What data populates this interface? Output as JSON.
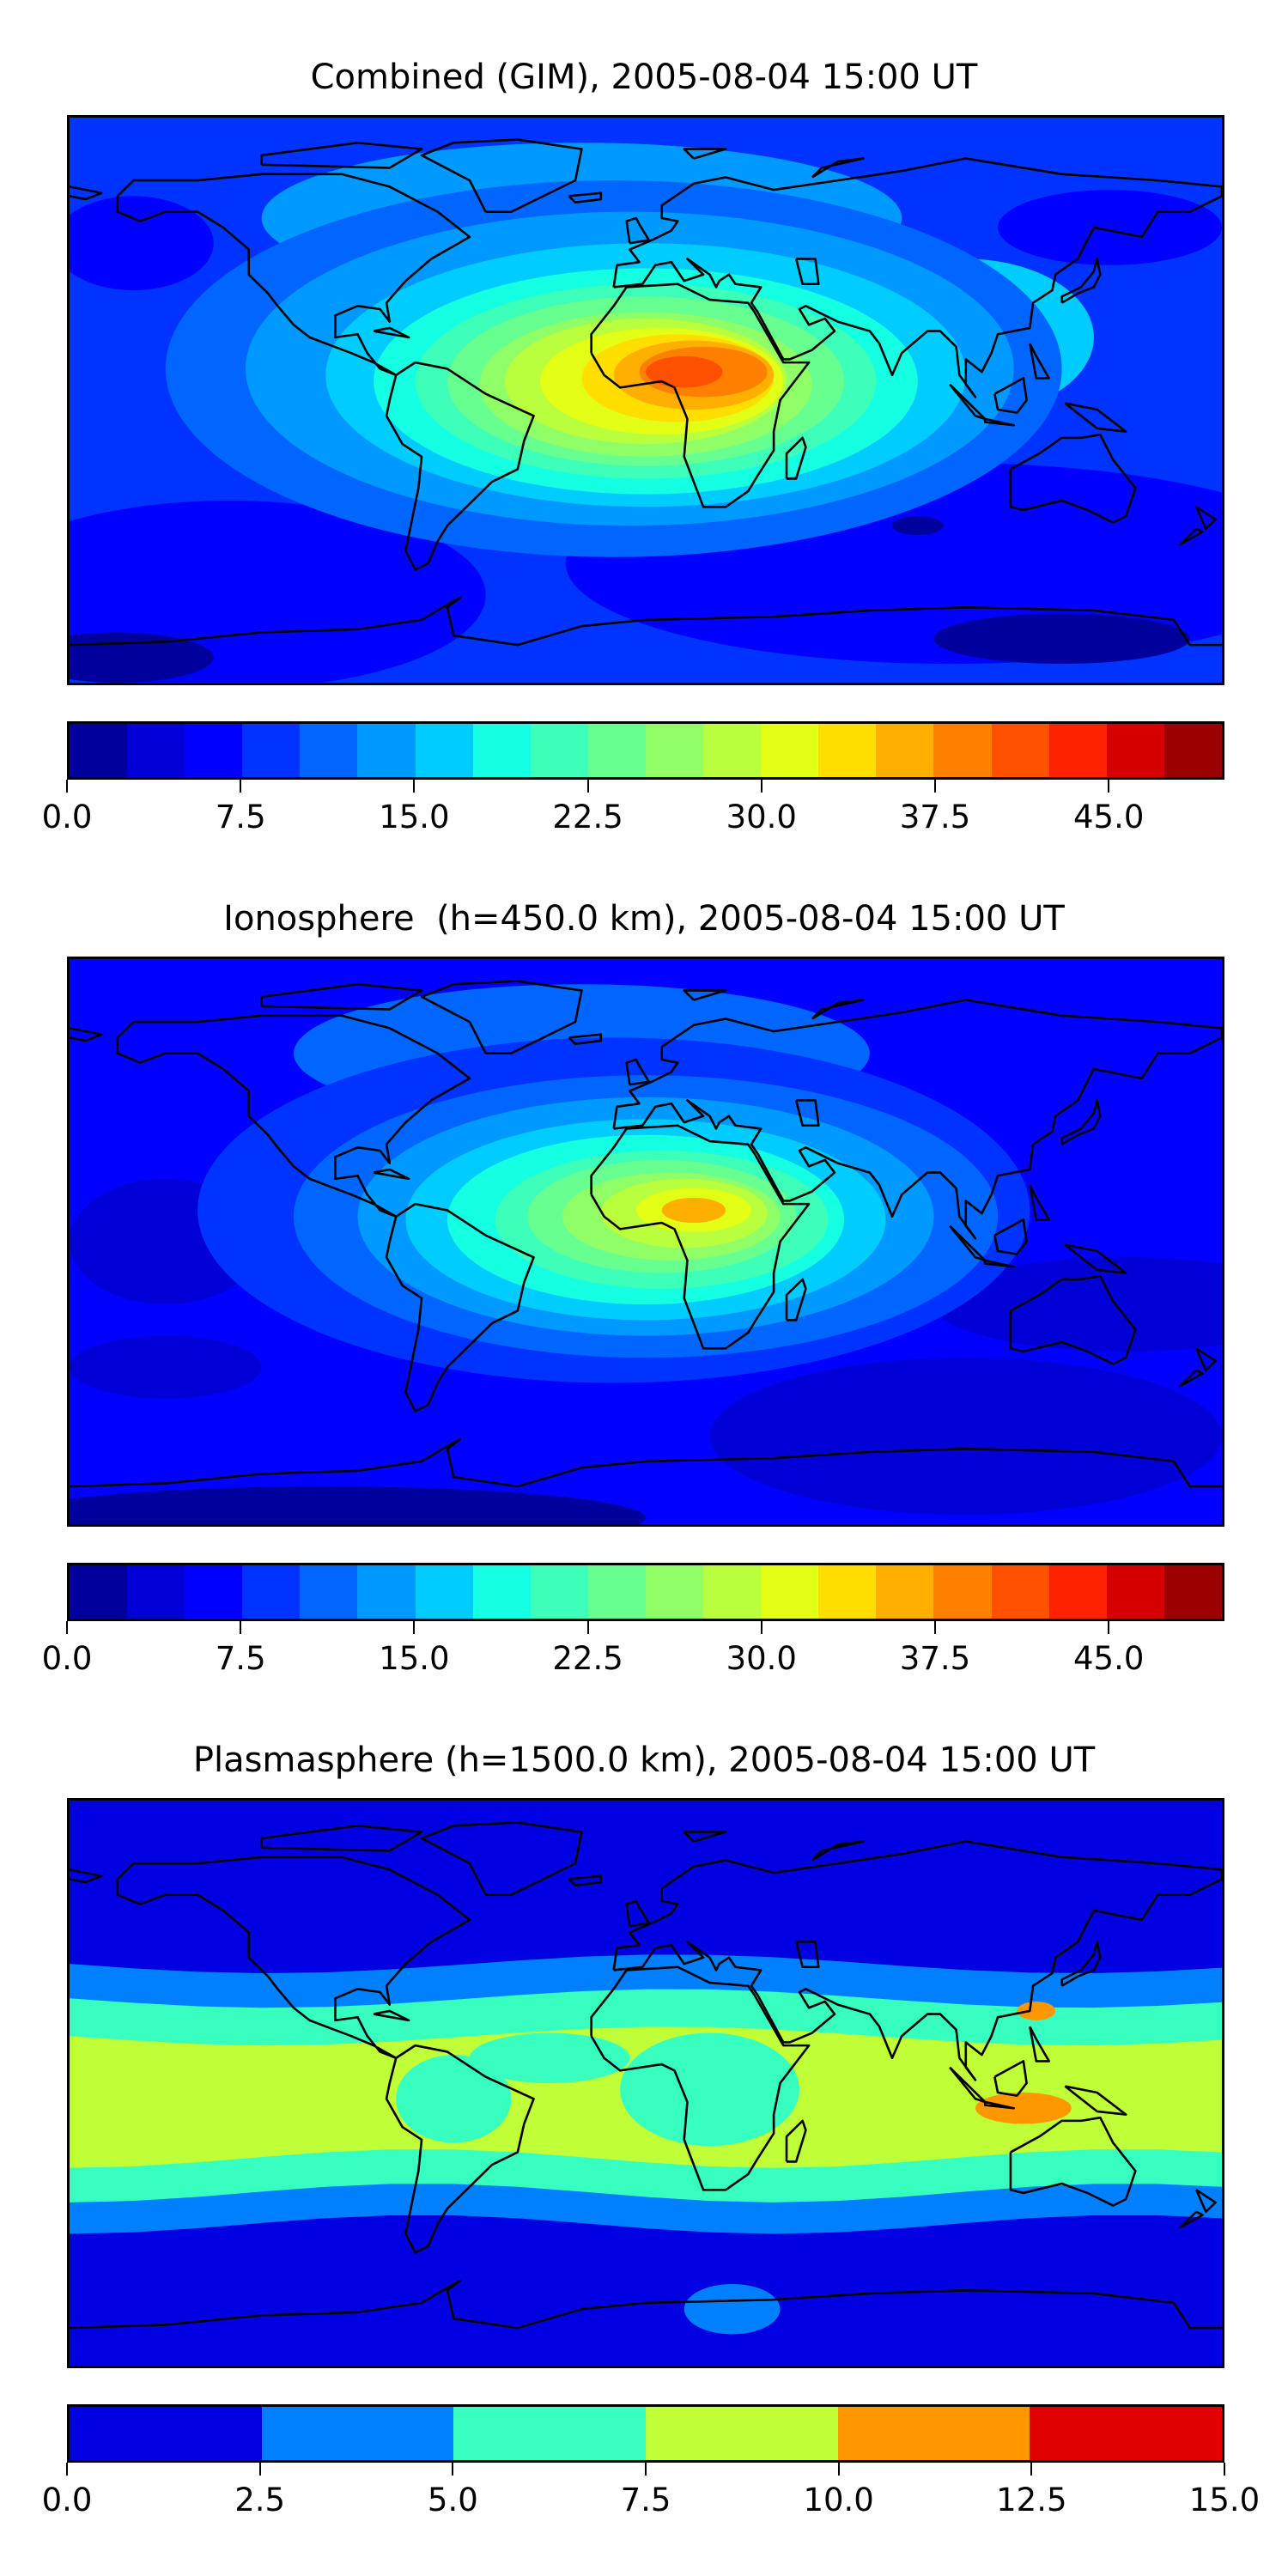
{
  "chart_data": [
    {
      "type": "heatmap",
      "subtype": "filled-contour world map",
      "title": "Combined (GIM), 2005-08-04 15:00 UT",
      "colormap": "jet",
      "levels": {
        "min": 0,
        "max": 50,
        "step": 2.5
      },
      "colorbar_ticks": [
        "0.0",
        "7.5",
        "15.0",
        "22.5",
        "30.0",
        "37.5",
        "45.0"
      ],
      "colorbar_tick_values": [
        0,
        7.5,
        15,
        22.5,
        30,
        37.5,
        45
      ],
      "x_range_lon": [
        -180,
        180
      ],
      "y_range_lat": [
        -90,
        90
      ],
      "background_value": 9,
      "peak": {
        "lon": 12,
        "lat": 9,
        "value": 41
      },
      "regions": [
        {
          "lon": -20,
          "lat": 58,
          "rlon": 100,
          "rlat": 24,
          "value": 13
        },
        {
          "lon": 145,
          "lat": 55,
          "rlon": 35,
          "rlat": 12,
          "value": 6
        },
        {
          "lon": -160,
          "lat": 50,
          "rlon": 25,
          "rlat": 15,
          "value": 6
        },
        {
          "lon": -130,
          "lat": -62,
          "rlon": 80,
          "rlat": 30,
          "value": 6
        },
        {
          "lon": 95,
          "lat": -52,
          "rlon": 120,
          "rlat": 32,
          "value": 6
        },
        {
          "lon": 130,
          "lat": -76,
          "rlon": 40,
          "rlat": 8,
          "value": 2
        },
        {
          "lon": -165,
          "lat": -82,
          "rlon": 30,
          "rlat": 8,
          "value": 2
        },
        {
          "lon": 85,
          "lat": -40,
          "rlon": 8,
          "rlat": 3,
          "value": 1
        },
        {
          "lon": 100,
          "lat": 20,
          "rlon": 40,
          "rlat": 25,
          "value": 16
        },
        {
          "lon": -10,
          "lat": 10,
          "rlon": 140,
          "rlat": 60,
          "value": 11
        },
        {
          "lon": -5,
          "lat": 10,
          "rlon": 120,
          "rlat": 50,
          "value": 14
        },
        {
          "lon": 0,
          "lat": 8,
          "rlon": 100,
          "rlat": 42,
          "value": 16
        },
        {
          "lon": 0,
          "lat": 6,
          "rlon": 85,
          "rlat": 36,
          "value": 19
        },
        {
          "lon": 0,
          "lat": 6,
          "rlon": 72,
          "rlat": 31,
          "value": 21
        },
        {
          "lon": 0,
          "lat": 6,
          "rlon": 62,
          "rlat": 27,
          "value": 24
        },
        {
          "lon": 0,
          "lat": 5,
          "rlon": 52,
          "rlat": 23,
          "value": 26
        },
        {
          "lon": 0,
          "lat": 6,
          "rlon": 44,
          "rlat": 20,
          "value": 29
        },
        {
          "lon": 5,
          "lat": 6,
          "rlon": 38,
          "rlat": 17,
          "value": 31
        },
        {
          "lon": 10,
          "lat": 7,
          "rlon": 30,
          "rlat": 14,
          "value": 34
        },
        {
          "lon": 15,
          "lat": 8,
          "rlon": 25,
          "rlat": 11,
          "value": 36
        },
        {
          "lon": 18,
          "lat": 9,
          "rlon": 20,
          "rlat": 8,
          "value": 39
        },
        {
          "lon": 12,
          "lat": 9,
          "rlon": 12,
          "rlat": 5,
          "value": 41
        }
      ]
    },
    {
      "type": "heatmap",
      "subtype": "filled-contour world map",
      "title": "Ionosphere  (h=450.0 km), 2005-08-04 15:00 UT",
      "colormap": "jet",
      "levels": {
        "min": 0,
        "max": 50,
        "step": 2.5
      },
      "colorbar_ticks": [
        "0.0",
        "7.5",
        "15.0",
        "22.5",
        "30.0",
        "37.5",
        "45.0"
      ],
      "colorbar_tick_values": [
        0,
        7.5,
        15,
        22.5,
        30,
        37.5,
        45
      ],
      "x_range_lon": [
        -180,
        180
      ],
      "y_range_lat": [
        -90,
        90
      ],
      "background_value": 6,
      "peak": {
        "lon": 15,
        "lat": 10,
        "value": 35
      },
      "regions": [
        {
          "lon": -20,
          "lat": 60,
          "rlon": 90,
          "rlat": 22,
          "value": 11
        },
        {
          "lon": -150,
          "lat": 0,
          "rlon": 30,
          "rlat": 20,
          "value": 3
        },
        {
          "lon": -150,
          "lat": -40,
          "rlon": 30,
          "rlat": 10,
          "value": 3
        },
        {
          "lon": 150,
          "lat": -20,
          "rlon": 60,
          "rlat": 15,
          "value": 4
        },
        {
          "lon": 100,
          "lat": -62,
          "rlon": 80,
          "rlat": 25,
          "value": 3
        },
        {
          "lon": -100,
          "lat": -88,
          "rlon": 100,
          "rlat": 10,
          "value": 2
        },
        {
          "lon": -10,
          "lat": 10,
          "rlon": 130,
          "rlat": 55,
          "value": 9
        },
        {
          "lon": 0,
          "lat": 8,
          "rlon": 110,
          "rlat": 45,
          "value": 12
        },
        {
          "lon": 0,
          "lat": 8,
          "rlon": 90,
          "rlat": 38,
          "value": 14
        },
        {
          "lon": 0,
          "lat": 7,
          "rlon": 75,
          "rlat": 32,
          "value": 17
        },
        {
          "lon": 0,
          "lat": 7,
          "rlon": 62,
          "rlat": 27,
          "value": 19
        },
        {
          "lon": 5,
          "lat": 7,
          "rlon": 52,
          "rlat": 22,
          "value": 22
        },
        {
          "lon": 5,
          "lat": 8,
          "rlon": 42,
          "rlat": 18,
          "value": 24
        },
        {
          "lon": 8,
          "lat": 8,
          "rlon": 34,
          "rlat": 14,
          "value": 27
        },
        {
          "lon": 12,
          "lat": 9,
          "rlon": 26,
          "rlat": 11,
          "value": 29
        },
        {
          "lon": 15,
          "lat": 10,
          "rlon": 18,
          "rlat": 7,
          "value": 32
        },
        {
          "lon": 15,
          "lat": 10,
          "rlon": 10,
          "rlat": 4,
          "value": 35
        }
      ]
    },
    {
      "type": "heatmap",
      "subtype": "filled-contour world map",
      "title": "Plasmasphere (h=1500.0 km), 2005-08-04 15:00 UT",
      "colormap": "jet",
      "levels": {
        "min": 0,
        "max": 15,
        "step": 2.5
      },
      "colorbar_ticks": [
        "0.0",
        "2.5",
        "5.0",
        "7.5",
        "10.0",
        "12.5",
        "15.0"
      ],
      "colorbar_tick_values": [
        0,
        2.5,
        5,
        7.5,
        10,
        12.5,
        15
      ],
      "x_range_lon": [
        -180,
        180
      ],
      "y_range_lat": [
        -90,
        90
      ],
      "background_value": 1,
      "bands": [
        {
          "lat_north": 38,
          "lat_south": -45,
          "value": 4
        },
        {
          "lat_north": 27,
          "lat_south": -35,
          "value": 6
        },
        {
          "lat_north": 15,
          "lat_south": -24,
          "value": 8.5
        }
      ],
      "regions": [
        {
          "lon": -30,
          "lat": 8,
          "rlon": 25,
          "rlat": 8,
          "value": 6
        },
        {
          "lon": 20,
          "lat": -2,
          "rlon": 28,
          "rlat": 18,
          "value": 6
        },
        {
          "lon": -60,
          "lat": -5,
          "rlon": 18,
          "rlat": 14,
          "value": 6
        },
        {
          "lon": 27,
          "lat": -72,
          "rlon": 15,
          "rlat": 8,
          "value": 4
        },
        {
          "lon": 118,
          "lat": -8,
          "rlon": 15,
          "rlat": 5,
          "value": 11
        },
        {
          "lon": 122,
          "lat": 23,
          "rlon": 6,
          "rlat": 3,
          "value": 11
        }
      ]
    }
  ]
}
